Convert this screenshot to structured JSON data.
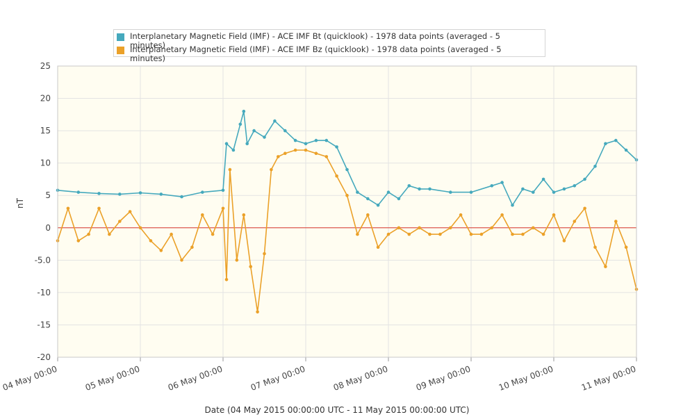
{
  "colors": {
    "bt": "#45a9bd",
    "bz": "#eba129",
    "zero_line": "#d9352a",
    "plot_bg": "#fffdf1",
    "grid": "#e3e3e3"
  },
  "legend": {
    "items": [
      {
        "label": "Interplanetary Magnetic Field (IMF) - ACE IMF Bt (quicklook) - 1978 data points (averaged - 5 minutes)"
      },
      {
        "label": "Interplanetary Magnetic Field (IMF) - ACE IMF Bz (quicklook) - 1978 data points (averaged - 5 minutes)"
      }
    ]
  },
  "axes": {
    "xlabel": "Date (04 May 2015 00:00:00 UTC - 11 May 2015 00:00:00 UTC)",
    "ylabel": "nT"
  },
  "chart_data": {
    "type": "line",
    "title": "",
    "xlabel": "Date (04 May 2015 00:00:00 UTC - 11 May 2015 00:00:00 UTC)",
    "ylabel": "nT",
    "ylim": [
      -20,
      25
    ],
    "xlim": [
      "04 May 00:00",
      "11 May 00:00"
    ],
    "x_ticks": [
      "04 May 00:00",
      "05 May 00:00",
      "06 May 00:00",
      "07 May 00:00",
      "08 May 00:00",
      "09 May 00:00",
      "10 May 00:00",
      "11 May 00:00"
    ],
    "y_ticks": [
      "25",
      "20",
      "15",
      "10",
      "5",
      "0",
      "-5.0",
      "-10",
      "-15",
      "-20"
    ],
    "y_tick_values": [
      25,
      20,
      15,
      10,
      5,
      0,
      -5,
      -10,
      -15,
      -20
    ],
    "grid": true,
    "zero_line": 0,
    "legend_position": "top",
    "series": [
      {
        "name": "Interplanetary Magnetic Field (IMF) - ACE IMF Bt (quicklook) - 1978 data points (averaged - 5 minutes)",
        "x": [
          "04 May 00:00",
          "04 May 06:00",
          "04 May 12:00",
          "04 May 18:00",
          "05 May 00:00",
          "05 May 06:00",
          "05 May 12:00",
          "05 May 18:00",
          "06 May 00:00",
          "06 May 01:00",
          "06 May 03:00",
          "06 May 05:00",
          "06 May 06:00",
          "06 May 07:00",
          "06 May 09:00",
          "06 May 12:00",
          "06 May 15:00",
          "06 May 18:00",
          "06 May 21:00",
          "07 May 00:00",
          "07 May 03:00",
          "07 May 06:00",
          "07 May 09:00",
          "07 May 12:00",
          "07 May 15:00",
          "07 May 18:00",
          "07 May 21:00",
          "08 May 00:00",
          "08 May 03:00",
          "08 May 06:00",
          "08 May 09:00",
          "08 May 12:00",
          "08 May 18:00",
          "09 May 00:00",
          "09 May 06:00",
          "09 May 09:00",
          "09 May 12:00",
          "09 May 15:00",
          "09 May 18:00",
          "09 May 21:00",
          "10 May 00:00",
          "10 May 03:00",
          "10 May 06:00",
          "10 May 09:00",
          "10 May 12:00",
          "10 May 15:00",
          "10 May 18:00",
          "10 May 21:00",
          "11 May 00:00"
        ],
        "values": [
          5.8,
          5.5,
          5.3,
          5.2,
          5.4,
          5.2,
          4.8,
          5.5,
          5.8,
          13,
          12,
          16,
          18,
          13,
          15,
          14,
          16.5,
          15,
          13.5,
          13,
          13.5,
          13.5,
          12.5,
          9,
          5.5,
          4.5,
          3.5,
          5.5,
          4.5,
          6.5,
          6,
          6,
          5.5,
          5.5,
          6.5,
          7,
          3.5,
          6,
          5.5,
          7.5,
          5.5,
          6,
          6.5,
          7.5,
          9.5,
          13,
          13.5,
          12,
          10.5
        ]
      },
      {
        "name": "Interplanetary Magnetic Field (IMF) - ACE IMF Bz (quicklook) - 1978 data points (averaged - 5 minutes)",
        "x": [
          "04 May 00:00",
          "04 May 03:00",
          "04 May 06:00",
          "04 May 09:00",
          "04 May 12:00",
          "04 May 15:00",
          "04 May 18:00",
          "04 May 21:00",
          "05 May 00:00",
          "05 May 03:00",
          "05 May 06:00",
          "05 May 09:00",
          "05 May 12:00",
          "05 May 15:00",
          "05 May 18:00",
          "05 May 21:00",
          "06 May 00:00",
          "06 May 01:00",
          "06 May 02:00",
          "06 May 04:00",
          "06 May 06:00",
          "06 May 08:00",
          "06 May 10:00",
          "06 May 12:00",
          "06 May 14:00",
          "06 May 16:00",
          "06 May 18:00",
          "06 May 21:00",
          "07 May 00:00",
          "07 May 03:00",
          "07 May 06:00",
          "07 May 09:00",
          "07 May 12:00",
          "07 May 15:00",
          "07 May 18:00",
          "07 May 21:00",
          "08 May 00:00",
          "08 May 03:00",
          "08 May 06:00",
          "08 May 09:00",
          "08 May 12:00",
          "08 May 15:00",
          "08 May 18:00",
          "08 May 21:00",
          "09 May 00:00",
          "09 May 03:00",
          "09 May 06:00",
          "09 May 09:00",
          "09 May 12:00",
          "09 May 15:00",
          "09 May 18:00",
          "09 May 21:00",
          "10 May 00:00",
          "10 May 03:00",
          "10 May 06:00",
          "10 May 09:00",
          "10 May 12:00",
          "10 May 15:00",
          "10 May 18:00",
          "10 May 21:00",
          "11 May 00:00"
        ],
        "values": [
          -2,
          3,
          -2,
          -1,
          3,
          -1,
          1,
          2.5,
          0,
          -2,
          -3.5,
          -1,
          -5,
          -3,
          2,
          -1,
          3,
          -8,
          9,
          -5,
          2,
          -6,
          -13,
          -4,
          9,
          11,
          11.5,
          12,
          12,
          11.5,
          11,
          8,
          5,
          -1,
          2,
          -3,
          -1,
          0,
          -1,
          0,
          -1,
          -1,
          0,
          2,
          -1,
          -1,
          0,
          2,
          -1,
          -1,
          0,
          -1,
          2,
          -2,
          1,
          3,
          -3,
          -6,
          1,
          -3,
          -9.5
        ]
      }
    ]
  }
}
